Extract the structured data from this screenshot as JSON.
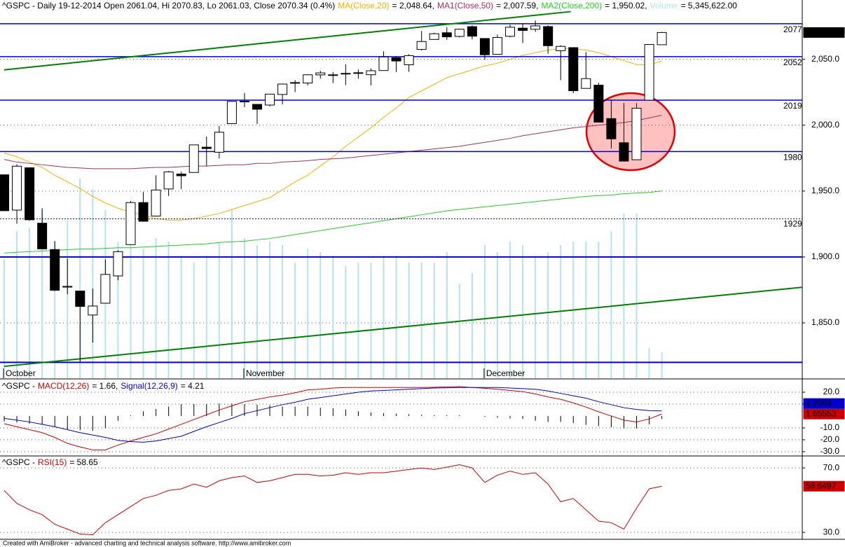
{
  "footer": "Created with AmiBroker - advanced charting and technical analysis software. http://www.amibroker.com",
  "chart_data": [
    {
      "type": "candlestick",
      "title": "^GSPC - Daily 19-12-2014 Open 2061.04, Hi 2070.83, Lo 2061.03, Close 2070.34 (0.4%)",
      "categories": [
        "October",
        null,
        null,
        null,
        null,
        null,
        null,
        null,
        null,
        null,
        null,
        null,
        null,
        null,
        null,
        null,
        null,
        null,
        null,
        "November",
        null,
        null,
        null,
        null,
        null,
        null,
        null,
        null,
        null,
        null,
        null,
        null,
        null,
        null,
        null,
        null,
        null,
        null,
        "December",
        null,
        null,
        null,
        null,
        null,
        null,
        null,
        null,
        null,
        null,
        null,
        null,
        null,
        null
      ],
      "open": [
        1962.36,
        1935.55,
        1967.68,
        1925.63,
        1905.65,
        1877.11,
        1874.18,
        1855.95,
        1864.91,
        1885.62,
        1909.38,
        1941.29,
        1931.02,
        1951.59,
        1962.97,
        1964.14,
        1983.29,
        1979.49,
        2001.2,
        2018.21,
        2015.81,
        2015.29,
        2023.33,
        2032.36,
        2032.01,
        2038.2,
        2037.75,
        2039.21,
        2039.74,
        2038.29,
        2041.48,
        2051.16,
        2045.87,
        2057.46,
        2065.07,
        2070.15,
        2067.36,
        2074.78,
        2065.78,
        2053.77,
        2067.45,
        2073.64,
        2072.78,
        2074.84,
        2056.55,
        2058.86,
        2027.92,
        2030.36,
        2005.03,
        1986.71,
        1973.77,
        2018.98,
        2061.04
      ],
      "high": [
        1962.36,
        1970.36,
        1967.68,
        1936.98,
        1912.09,
        1898.71,
        1874.18,
        1876.01,
        1898.16,
        1905.03,
        1942.45,
        1949.31,
        1961.95,
        1965.27,
        1964.64,
        1985.05,
        1991.4,
        1999.4,
        2018.19,
        2024.46,
        2015.98,
        2023.77,
        2031.61,
        2034.26,
        2038.7,
        2041.28,
        2040.33,
        2046.18,
        2042.22,
        2043.07,
        2056.08,
        2052.14,
        2053.84,
        2071.46,
        2070.17,
        2074.21,
        2073.29,
        2075.76,
        2065.78,
        2068.77,
        2076.28,
        2077.34,
        2079.47,
        2075.78,
        2060.6,
        2058.86,
        2055.53,
        2032.25,
        2018.69,
        2016.89,
        2016.75,
        2061.23,
        2070.83
      ],
      "low": [
        1935.73,
        1925.25,
        1927.56,
        1906.05,
        1874.14,
        1871.79,
        1820.66,
        1835.02,
        1864.91,
        1882.3,
        1909.38,
        1926.83,
        1931.02,
        1946.27,
        1951.37,
        1964.14,
        1969.04,
        1974.75,
        2001.2,
        2013.68,
        2001.01,
        2014.25,
        2015.86,
        2025.07,
        2030.17,
        2035.28,
        2031.95,
        2030.44,
        2035.2,
        2030.2,
        2041.48,
        2040.37,
        2040.49,
        2056.75,
        2065.07,
        2064.75,
        2066.62,
        2065.06,
        2049.57,
        2053.77,
        2066.65,
        2062.34,
        2070.81,
        2054.27,
        2034.17,
        2024.26,
        2027.92,
        2002.33,
        1982.26,
        1972.56,
        1973.77,
        2018.98,
        2061.03
      ],
      "close": [
        1935.1,
        1968.89,
        1928.21,
        1906.13,
        1874.74,
        1877.7,
        1862.49,
        1862.76,
        1886.76,
        1904.01,
        1941.28,
        1927.11,
        1950.82,
        1964.58,
        1961.63,
        1985.05,
        1982.3,
        1994.65,
        2018.05,
        2017.81,
        2012.1,
        2023.57,
        2031.21,
        2031.92,
        2038.26,
        2039.68,
        2038.25,
        2039.33,
        2039.82,
        2041.32,
        2051.8,
        2048.72,
        2052.75,
        2063.5,
        2069.41,
        2067.03,
        2072.83,
        2067.56,
        2053.44,
        2066.55,
        2074.33,
        2071.92,
        2075.37,
        2060.31,
        2059.82,
        2026.14,
        2035.33,
        2002.33,
        1989.63,
        1972.74,
        2012.89,
        2061.23,
        2070.34
      ],
      "close_label": "2,070.34",
      "ylim": [
        1808,
        2095
      ],
      "yticks": [
        {
          "value": 1850,
          "label": "1,850.0"
        },
        {
          "value": 1900,
          "label": "1,900.0"
        },
        {
          "value": 1950,
          "label": "1,950.0"
        },
        {
          "value": 2000,
          "label": "2,000.0"
        },
        {
          "value": 2050,
          "label": "2,050.0"
        }
      ],
      "grid": true,
      "levels": [
        2077,
        2052,
        2019,
        1980
      ],
      "dashed_levels": [
        1929
      ],
      "unlabeled_levels": [
        1900,
        1820
      ],
      "trendlines": [
        {
          "x": [
            0,
            44.8
          ],
          "values": [
            2042,
            2086.2
          ]
        },
        {
          "x": [
            0,
            63.1
          ],
          "values": [
            1817,
            1877
          ]
        }
      ],
      "series": [
        {
          "name": "MA(Close,20)",
          "color": "#f0b000",
          "value_label": "= 2,048.64,",
          "values": [
            1979,
            1976,
            1972,
            1968,
            1962,
            1957,
            1952,
            1946,
            1941,
            1937,
            1934,
            1932,
            1929,
            1928,
            1928,
            1929,
            1931,
            1933,
            1936,
            1939,
            1942,
            1945,
            1951,
            1957,
            1962,
            1969,
            1976,
            1984,
            1991,
            1998,
            2006,
            2013,
            2021,
            2026,
            2031,
            2036,
            2039,
            2042,
            2045,
            2047,
            2050,
            2053,
            2055,
            2057,
            2058,
            2058,
            2057,
            2055,
            2052,
            2049,
            2046,
            2046,
            2048.64
          ]
        },
        {
          "name": "MA1(Close,50)",
          "color": "#a03060",
          "value_label": "= 2,007.59,",
          "values": [
            1974,
            1972,
            1971,
            1970,
            1969,
            1968,
            1967.5,
            1967,
            1967,
            1967,
            1967,
            1967.5,
            1968,
            1968,
            1968.5,
            1969,
            1969,
            1969.5,
            1970,
            1970,
            1971,
            1971,
            1972,
            1972.5,
            1973,
            1974,
            1974.5,
            1975,
            1976,
            1977,
            1978,
            1979,
            1980,
            1981,
            1982,
            1983,
            1984,
            1985.5,
            1987,
            1988.5,
            1990,
            1992,
            1993.5,
            1995,
            1996.5,
            1998,
            1999,
            2000,
            2001,
            2002,
            2003.5,
            2005.5,
            2007.59
          ]
        },
        {
          "name": "MA2(Close,200)",
          "color": "#22cc22",
          "value_label": "= 1,950.02,",
          "values": [
            1903,
            1903.5,
            1904,
            1904.5,
            1905,
            1905.5,
            1906,
            1906,
            1906.5,
            1907,
            1907,
            1907.5,
            1908,
            1908.5,
            1909,
            1909.5,
            1910,
            1911,
            1911.5,
            1912,
            1913,
            1914,
            1915.5,
            1917,
            1918.5,
            1920,
            1921.5,
            1923,
            1924.5,
            1926,
            1927.5,
            1929,
            1930.5,
            1932,
            1933.5,
            1935,
            1936,
            1937,
            1938,
            1939,
            1940,
            1941,
            1942,
            1943,
            1944,
            1945,
            1946,
            1946.5,
            1947,
            1948,
            1948.5,
            1949,
            1950.02
          ]
        }
      ],
      "volume": {
        "name": "Volume",
        "color": "#b4e2ee",
        "value_label": "= 5,345,622.00",
        "values": [
          24565000,
          30345000,
          31067500,
          34680000,
          28177500,
          32512500,
          41182500,
          39015000,
          34680000,
          28177500,
          31790000,
          26732500,
          28900000,
          28177500,
          25287500,
          23842500,
          25287500,
          28177500,
          34680000,
          28900000,
          27455000,
          28177500,
          27455000,
          23842500,
          26732500,
          26010000,
          25287500,
          23120000,
          23842500,
          23842500,
          25287500,
          25287500,
          23842500,
          23842500,
          23842500,
          26010000,
          19507500,
          21675000,
          27455000,
          26010000,
          28177500,
          27455000,
          25287500,
          26010000,
          27455000,
          28177500,
          28177500,
          28177500,
          30345000,
          33957500,
          33957500,
          6213500,
          5345622
        ]
      }
    },
    {
      "type": "line",
      "prefix": "^GSPC -",
      "ylim": [
        -33,
        30
      ],
      "yticks": [
        {
          "value": 20,
          "label": "20.0"
        },
        {
          "value": 10,
          "label": "10.0"
        },
        {
          "value": -10,
          "label": "-10.0"
        },
        {
          "value": -20,
          "label": "-20.0"
        },
        {
          "value": -30,
          "label": "-30.0"
        }
      ],
      "grid": true,
      "series": [
        {
          "name": "MACD(12,26)",
          "color": "#cc0000",
          "value_label": "= 1.66,",
          "last_label": "1.65553",
          "values": [
            -6.5,
            -9,
            -11.5,
            -14,
            -18,
            -23,
            -26,
            -28.5,
            -28.5,
            -24.5,
            -21,
            -18,
            -15,
            -11,
            -7,
            -3,
            1,
            5,
            8.5,
            12,
            14,
            16,
            17.5,
            19.5,
            22,
            22.5,
            23.5,
            24,
            24,
            24,
            24,
            24,
            24,
            24,
            24.2,
            24.5,
            24.7,
            24,
            23.3,
            22.5,
            21.5,
            20.5,
            18.5,
            16,
            14,
            11,
            7.5,
            3.5,
            0,
            -3.5,
            -5,
            -2.5,
            1.65553
          ]
        },
        {
          "name": "Signal(12,26,9)",
          "color": "#0000cc",
          "value_label": "= 4.21",
          "last_label": "4.2069",
          "values": [
            -2,
            -3.5,
            -5,
            -7,
            -9,
            -11.5,
            -14,
            -16,
            -18,
            -20.5,
            -21.5,
            -22,
            -21,
            -19,
            -17,
            -13,
            -9,
            -5.5,
            -2,
            2,
            4.5,
            7,
            9.5,
            11.5,
            14,
            15.5,
            17,
            18.5,
            20,
            21,
            21.5,
            22,
            22.5,
            23,
            23.5,
            23.7,
            24,
            24,
            24,
            24,
            23.5,
            23,
            22.5,
            21,
            19,
            17,
            15,
            12,
            9.5,
            7,
            5.5,
            4.5,
            4.2069
          ]
        }
      ],
      "histogram": {
        "color": "#000000",
        "values": [
          -4.5,
          -5.5,
          -6.5,
          -7,
          -9,
          -11.5,
          -12,
          -12.5,
          -10.5,
          -4,
          0.5,
          4,
          6,
          8,
          10,
          10,
          10,
          10.5,
          10.5,
          10,
          9.5,
          9,
          8,
          8,
          8,
          7,
          6.5,
          5.5,
          4,
          3,
          2.5,
          2,
          1.5,
          1,
          0.7,
          0.8,
          0.7,
          0,
          -0.7,
          -1.5,
          -2,
          -2.5,
          -4,
          -5,
          -5,
          -6,
          -7.5,
          -8.5,
          -9.5,
          -10.5,
          -10.5,
          -7,
          -2.55
        ]
      }
    },
    {
      "type": "line",
      "prefix": "^GSPC -",
      "ylim": [
        25.7,
        77
      ],
      "yticks": [
        {
          "value": 70,
          "label": "70.0"
        },
        {
          "value": 30,
          "label": "30.0"
        }
      ],
      "grid": true,
      "series": [
        {
          "name": "RSI(15)",
          "color": "#cc0000",
          "value_label": "= 58.65",
          "last_label": "58.6497",
          "values": [
            56,
            48,
            44,
            41,
            35,
            32,
            29,
            28.5,
            36,
            41,
            46,
            51,
            53,
            56,
            57,
            60,
            58,
            62,
            64,
            65,
            61,
            62,
            64,
            66,
            66,
            65,
            65.5,
            67,
            66,
            67,
            67,
            68,
            69,
            70,
            69,
            70.5,
            72,
            70,
            61,
            65.5,
            68,
            66,
            67,
            60,
            49,
            51,
            44,
            37,
            36,
            32,
            45,
            57,
            58.6497
          ]
        }
      ]
    }
  ]
}
